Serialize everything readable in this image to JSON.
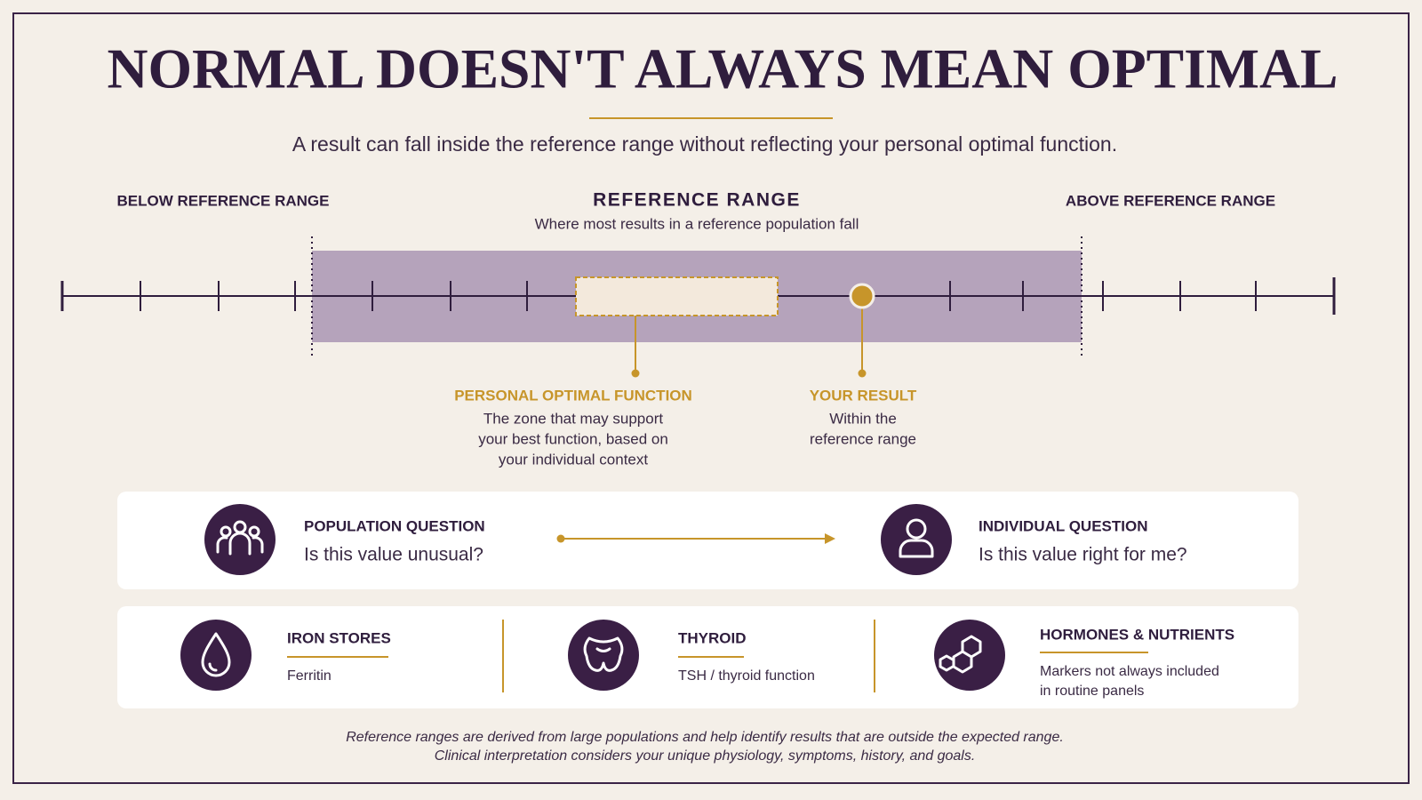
{
  "header": {
    "title": "NORMAL DOESN'T ALWAYS MEAN OPTIMAL",
    "subtitle": "A result can fall inside the reference range without reflecting your personal optimal function."
  },
  "scale": {
    "below_label": "BELOW REFERENCE RANGE",
    "reference": {
      "title": "REFERENCE RANGE",
      "subtitle": "Where most results in a reference population fall"
    },
    "above_label": "ABOVE REFERENCE RANGE"
  },
  "callouts": [
    {
      "title": "PERSONAL OPTIMAL FUNCTION",
      "lines": [
        "The zone that may support",
        "your best function, based on",
        "your individual context"
      ]
    },
    {
      "title": "YOUR RESULT",
      "lines": [
        "Within the",
        "reference range"
      ]
    }
  ],
  "question_panel": {
    "population": {
      "title": "POPULATION QUESTION",
      "question": "Is this value unusual?"
    },
    "individual": {
      "title": "INDIVIDUAL QUESTION",
      "question": "Is this value right for me?"
    }
  },
  "markers": [
    {
      "title": "IRON STORES",
      "lines": [
        "Ferritin"
      ]
    },
    {
      "title": "THYROID",
      "lines": [
        "TSH / thyroid function"
      ]
    },
    {
      "title": "HORMONES & NUTRIENTS",
      "lines": [
        "Markers not always included",
        "in routine panels"
      ]
    }
  ],
  "footer": {
    "lines": [
      "Reference ranges are derived from large populations and help identify results that are outside the expected range.",
      "Clinical interpretation considers your unique physiology, symptoms, history, and goals."
    ]
  }
}
